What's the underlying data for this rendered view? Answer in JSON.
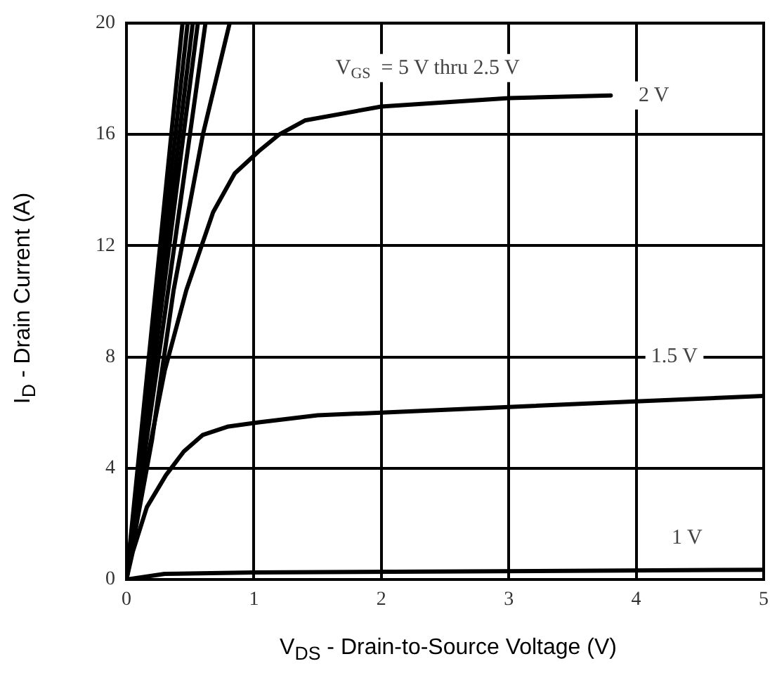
{
  "chart_data": {
    "type": "line",
    "xlabel": "V$_{DS}$ - Drain-to-Source Voltage (V)",
    "ylabel": "I$_{D}$ - Drain Current (A)",
    "xlim": [
      0,
      5
    ],
    "xticks": [
      0,
      1,
      2,
      3,
      4,
      5
    ],
    "ylim": [
      0,
      20
    ],
    "yticks": [
      0,
      4,
      8,
      12,
      16,
      20
    ],
    "grid": true,
    "legend": false,
    "marker": "none",
    "line_style": "solid",
    "series": [
      {
        "color": "#000000",
        "x": [
          0,
          0.44
        ],
        "values": [
          0,
          20
        ]
      },
      {
        "color": "#000000",
        "x": [
          0,
          0.48
        ],
        "values": [
          0,
          20
        ]
      },
      {
        "color": "#000000",
        "x": [
          0,
          0.52
        ],
        "values": [
          0,
          20
        ]
      },
      {
        "color": "#000000",
        "x": [
          0,
          0.56
        ],
        "values": [
          0,
          20
        ]
      },
      {
        "color": "#000000",
        "x": [
          0,
          0.3,
          0.62
        ],
        "values": [
          0,
          9.5,
          20
        ]
      },
      {
        "color": "#000000",
        "x": [
          0,
          0.2,
          0.37,
          0.6,
          0.81
        ],
        "values": [
          0,
          5,
          10.4,
          16,
          20
        ]
      },
      {
        "color": "#000000",
        "x": [
          0,
          0.15,
          0.3,
          0.47,
          0.68,
          0.85,
          1.04,
          1.2,
          1.4,
          2,
          3,
          3.8
        ],
        "values": [
          0,
          4,
          7.5,
          10.4,
          13.2,
          14.6,
          15.4,
          16,
          16.5,
          17,
          17.3,
          17.4
        ]
      },
      {
        "color": "#000000",
        "x": [
          0,
          0.05,
          0.16,
          0.31,
          0.45,
          0.6,
          0.8,
          1.04,
          1.5,
          2,
          3,
          4,
          5
        ],
        "values": [
          0,
          1,
          2.6,
          3.75,
          4.6,
          5.2,
          5.5,
          5.65,
          5.9,
          6,
          6.2,
          6.4,
          6.6
        ]
      },
      {
        "color": "#000000",
        "x": [
          0,
          0.3,
          1,
          5
        ],
        "values": [
          0,
          0.2,
          0.25,
          0.35
        ]
      }
    ],
    "annotations": [
      "V$_{GS}$  = 5 V thru 2.5 V",
      {
        "text": "2 V",
        "x": 4.14,
        "y": 17.4
      },
      {
        "text": "1.5 V",
        "x": 4.3,
        "y": 8
      },
      {
        "text": "1 V",
        "x": 4.4,
        "y": 1.5
      }
    ]
  }
}
